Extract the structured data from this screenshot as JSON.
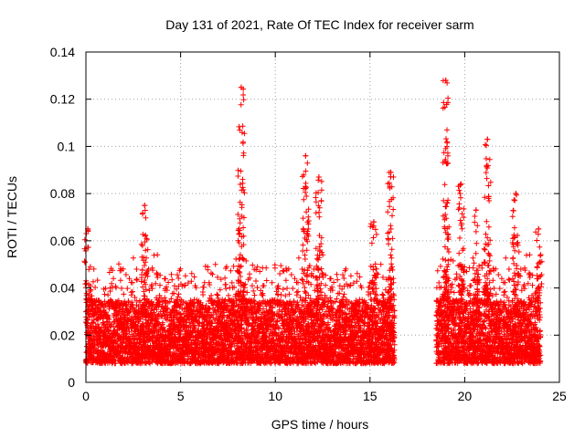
{
  "chart_data": {
    "type": "scatter",
    "title": "Day 131 of 2021, Rate Of TEC Index for receiver sarm",
    "xlabel": "GPS time / hours",
    "ylabel": "ROTI / TECUs",
    "xlim": [
      0,
      25
    ],
    "ylim": [
      0,
      0.14
    ],
    "x_ticks": [
      0,
      5,
      10,
      15,
      20,
      25
    ],
    "y_ticks": [
      0,
      0.02,
      0.04,
      0.06,
      0.08,
      0.1,
      0.12,
      0.14
    ],
    "x_tick_labels": [
      "0",
      "5",
      "10",
      "15",
      "20",
      "25"
    ],
    "y_tick_labels": [
      "0",
      "0.02",
      "0.04",
      "0.06",
      "0.08",
      "0.1",
      "0.12",
      "0.14"
    ],
    "grid": true,
    "marker": "plus",
    "color": "#ff0000",
    "data_segments": [
      {
        "x_start": 0.0,
        "x_end": 16.3
      },
      {
        "x_start": 18.5,
        "x_end": 24.0
      }
    ],
    "baseline_band": [
      0.008,
      0.035
    ],
    "spikes": [
      {
        "x": 0.1,
        "max": 0.065
      },
      {
        "x": 3.1,
        "max": 0.075
      },
      {
        "x": 8.2,
        "max": 0.125
      },
      {
        "x": 11.6,
        "max": 0.096
      },
      {
        "x": 12.3,
        "max": 0.087
      },
      {
        "x": 15.2,
        "max": 0.068
      },
      {
        "x": 16.1,
        "max": 0.089
      },
      {
        "x": 19.0,
        "max": 0.128
      },
      {
        "x": 19.8,
        "max": 0.084
      },
      {
        "x": 20.6,
        "max": 0.073
      },
      {
        "x": 21.2,
        "max": 0.103
      },
      {
        "x": 22.7,
        "max": 0.08
      },
      {
        "x": 23.9,
        "max": 0.065
      }
    ]
  }
}
